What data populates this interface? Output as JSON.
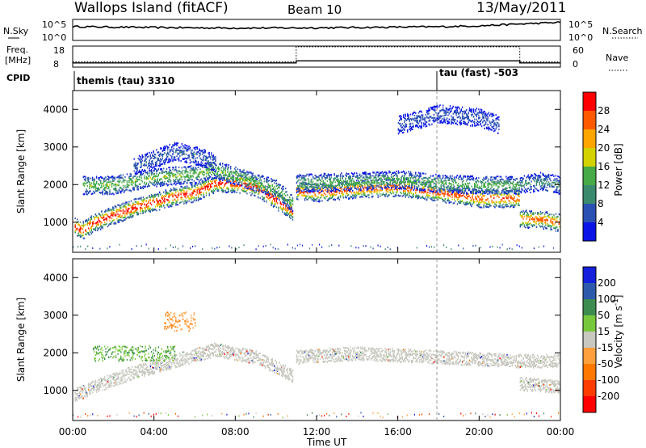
{
  "header": {
    "station": "Wallops Island (fitACF)",
    "beam": "Beam 10",
    "date": "13/May/2011"
  },
  "summary_panels": {
    "nsky": {
      "label": "N.Sky",
      "tick_top": "10^5",
      "tick_bottom": "10^0"
    },
    "nsearch": {
      "label": "N.Search",
      "tick_top": "10^5",
      "tick_bottom": "10^0"
    },
    "freq": {
      "label_line1": "Freq.",
      "label_line2": "[MHz]",
      "tick_top": "18",
      "tick_bottom": "8"
    },
    "nave": {
      "label": "Nave",
      "tick_top": "60",
      "tick_bottom": "0"
    },
    "cpid": {
      "label": "CPID",
      "modes": [
        {
          "name": "themis (tau) 3310",
          "start_hour": 0
        },
        {
          "name": "tau (fast) -503",
          "start_hour": 18
        }
      ]
    }
  },
  "x_axis": {
    "label": "Time UT",
    "ticks": [
      "00:00",
      "04:00",
      "08:00",
      "12:00",
      "16:00",
      "20:00",
      "00:00"
    ]
  },
  "power_panel": {
    "ylabel": "Slant Range [km]",
    "yticks": [
      "1000",
      "2000",
      "3000",
      "4000"
    ],
    "colorbar_label": "Power [dB]",
    "colorbar_ticks": [
      "4",
      "8",
      "12",
      "16",
      "20",
      "24",
      "28"
    ],
    "colors": [
      "#0a14e6",
      "#2b50b4",
      "#3a8a6e",
      "#46aa46",
      "#d2d200",
      "#ffa500",
      "#ff5a00",
      "#ff0000"
    ]
  },
  "velocity_panel": {
    "ylabel": "Slant Range [km]",
    "yticks": [
      "1000",
      "2000",
      "3000",
      "4000"
    ],
    "colorbar_label": "Velocity [m s",
    "colorbar_label_sup": "-1",
    "colorbar_label_end": "]",
    "colorbar_ticks": [
      "200",
      "100",
      "50",
      "15",
      "-15",
      "-50",
      "-100",
      "-200"
    ],
    "colors": [
      "#1420dc",
      "#2d5aaa",
      "#3c8c50",
      "#78c83c",
      "#c8c8c0",
      "#ffa03c",
      "#ff7800",
      "#ff3c00",
      "#ff0000"
    ],
    "ground_scatter_color": "#c8c8c0"
  },
  "chart_data": [
    {
      "type": "line",
      "name": "N.Sky",
      "x": [
        0,
        2,
        4,
        6,
        8,
        10,
        12,
        14,
        16,
        18,
        20,
        22,
        24
      ],
      "y": [
        2000,
        1500,
        1200,
        1000,
        900,
        900,
        1000,
        1200,
        1500,
        1800,
        3000,
        8000,
        20000
      ],
      "xlim": [
        0,
        24
      ],
      "yscale": "log",
      "ylim": [
        1,
        100000
      ]
    },
    {
      "type": "line",
      "name": "Freq.",
      "x": [
        0,
        11,
        11,
        22,
        22,
        24
      ],
      "y": [
        10,
        10,
        11,
        11,
        10,
        10
      ],
      "xlim": [
        0,
        24
      ],
      "ylim": [
        8,
        18
      ]
    },
    {
      "type": "line",
      "name": "Nave",
      "x": [
        0,
        11,
        11,
        22,
        22,
        24
      ],
      "y": [
        15,
        15,
        58,
        58,
        15,
        15
      ],
      "xlim": [
        0,
        24
      ],
      "ylim": [
        0,
        60
      ]
    },
    {
      "type": "heatmap",
      "name": "Power",
      "xlabel": "Time UT",
      "ylabel": "Slant Range [km]",
      "xlim": [
        0,
        24
      ],
      "ylim": [
        200,
        4500
      ],
      "zlabel": "Power [dB]",
      "zlim": [
        0,
        32
      ],
      "bands": [
        {
          "x": [
            0.1,
            0.5,
            1.0,
            2.0,
            3.0,
            4.0,
            5.0,
            6.0,
            7.0,
            8.0,
            9.0,
            10.0,
            10.85
          ],
          "y": [
            900,
            800,
            1000,
            1200,
            1400,
            1550,
            1700,
            1800,
            2050,
            2050,
            1950,
            1600,
            1300
          ],
          "peak_db": 28
        },
        {
          "x": [
            0.5,
            2.0,
            4.0,
            6.0,
            7.0,
            8.0,
            10.0,
            10.85
          ],
          "y": [
            2000,
            2000,
            2200,
            2300,
            2400,
            2250,
            1900,
            1500
          ],
          "peak_db": 14
        },
        {
          "x": [
            11.0,
            12.0,
            14.0,
            16.0,
            18.0,
            20.0,
            22.0
          ],
          "y": [
            1850,
            1800,
            1900,
            1950,
            1800,
            1650,
            1650
          ],
          "peak_db": 26
        },
        {
          "x": [
            11.0,
            14.0,
            16.0,
            18.0,
            20.0,
            22.0
          ],
          "y": [
            2050,
            2100,
            2150,
            2050,
            2000,
            2000
          ],
          "peak_db": 12
        },
        {
          "x": [
            22.0,
            23.0,
            24.0
          ],
          "y": [
            1100,
            1100,
            1000
          ],
          "peak_db": 24
        },
        {
          "x": [
            22.0,
            23.0,
            24.0
          ],
          "y": [
            2000,
            2100,
            2000
          ],
          "peak_db": 8
        },
        {
          "x": [
            3.0,
            4.0,
            5.0,
            6.0,
            7.0
          ],
          "y": [
            2500,
            2700,
            2900,
            2800,
            2600
          ],
          "peak_db": 6
        },
        {
          "x": [
            16.0,
            18.0,
            20.0,
            21.0
          ],
          "y": [
            3600,
            3900,
            3800,
            3600
          ],
          "peak_db": 5
        }
      ]
    },
    {
      "type": "heatmap",
      "name": "Velocity",
      "xlabel": "Time UT",
      "ylabel": "Slant Range [km]",
      "xlim": [
        0,
        24
      ],
      "ylim": [
        200,
        4500
      ],
      "zlabel": "Velocity [m s-1]",
      "zlim": [
        -200,
        200
      ],
      "ground_scatter_bands": [
        {
          "x": [
            0.1,
            1.0,
            3.0,
            5.0,
            7.0,
            9.0,
            10.85
          ],
          "y": [
            900,
            1100,
            1500,
            1800,
            2100,
            1900,
            1400
          ]
        },
        {
          "x": [
            11.0,
            14.0,
            18.0,
            22.0,
            24.0
          ],
          "y": [
            1900,
            2000,
            1900,
            1800,
            1800
          ]
        },
        {
          "x": [
            22.0,
            24.0
          ],
          "y": [
            1200,
            1100
          ]
        }
      ],
      "ionospheric_patches": [
        {
          "x": [
            4.5,
            6.0
          ],
          "y": [
            2600,
            3100
          ],
          "velocity": -60
        },
        {
          "x": [
            1.0,
            5.0
          ],
          "y": [
            1800,
            2200
          ],
          "velocity": 30
        }
      ]
    }
  ]
}
